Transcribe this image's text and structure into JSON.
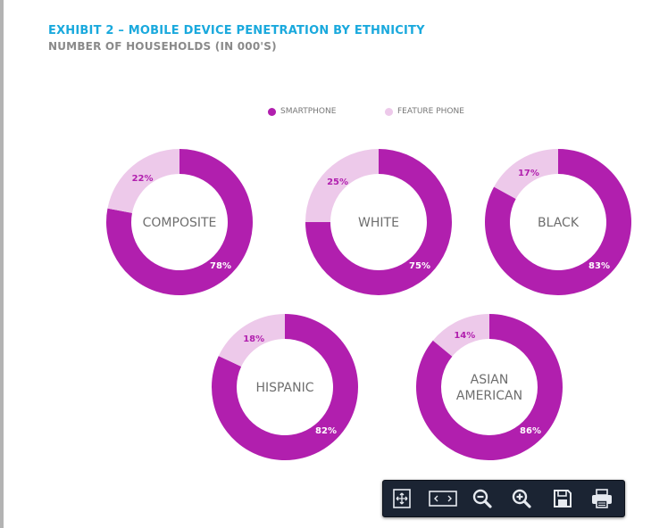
{
  "header": {
    "title": "EXHIBIT 2 – MOBILE DEVICE PENETRATION BY ETHNICITY",
    "subtitle": "NUMBER OF HOUSEHOLDS (IN 000'S)"
  },
  "colors": {
    "title": "#1aa9dd",
    "subtitle": "#8a8a8a",
    "smartphone": "#b11fae",
    "feature_phone": "#edc9ea",
    "smartphone_label": "#ffffff",
    "feature_label": "#b11fae",
    "center_label": "#6e6e6e",
    "toolbar_bg": "#1b2433"
  },
  "chart_data": {
    "type": "donut",
    "title": "EXHIBIT 2 – MOBILE DEVICE PENETRATION BY ETHNICITY",
    "subtitle": "NUMBER OF HOUSEHOLDS (IN 000'S)",
    "legend": [
      "SMARTPHONE",
      "FEATURE PHONE"
    ],
    "legend_position": "top-center",
    "charts": [
      {
        "label": [
          "COMPOSITE"
        ],
        "smartphone": 78,
        "feature_phone": 22,
        "smartphone_text": "78%",
        "feature_text": "22%"
      },
      {
        "label": [
          "WHITE"
        ],
        "smartphone": 75,
        "feature_phone": 25,
        "smartphone_text": "75%",
        "feature_text": "25%"
      },
      {
        "label": [
          "BLACK"
        ],
        "smartphone": 83,
        "feature_phone": 17,
        "smartphone_text": "83%",
        "feature_text": "17%"
      },
      {
        "label": [
          "HISPANIC"
        ],
        "smartphone": 82,
        "feature_phone": 18,
        "smartphone_text": "82%",
        "feature_text": "18%"
      },
      {
        "label": [
          "ASIAN",
          "AMERICAN"
        ],
        "smartphone": 86,
        "feature_phone": 14,
        "smartphone_text": "86%",
        "feature_text": "14%"
      }
    ]
  },
  "toolbar": {
    "icons": [
      "fit-page-icon",
      "fit-width-icon",
      "zoom-out-icon",
      "zoom-in-icon",
      "save-icon",
      "print-icon"
    ]
  }
}
